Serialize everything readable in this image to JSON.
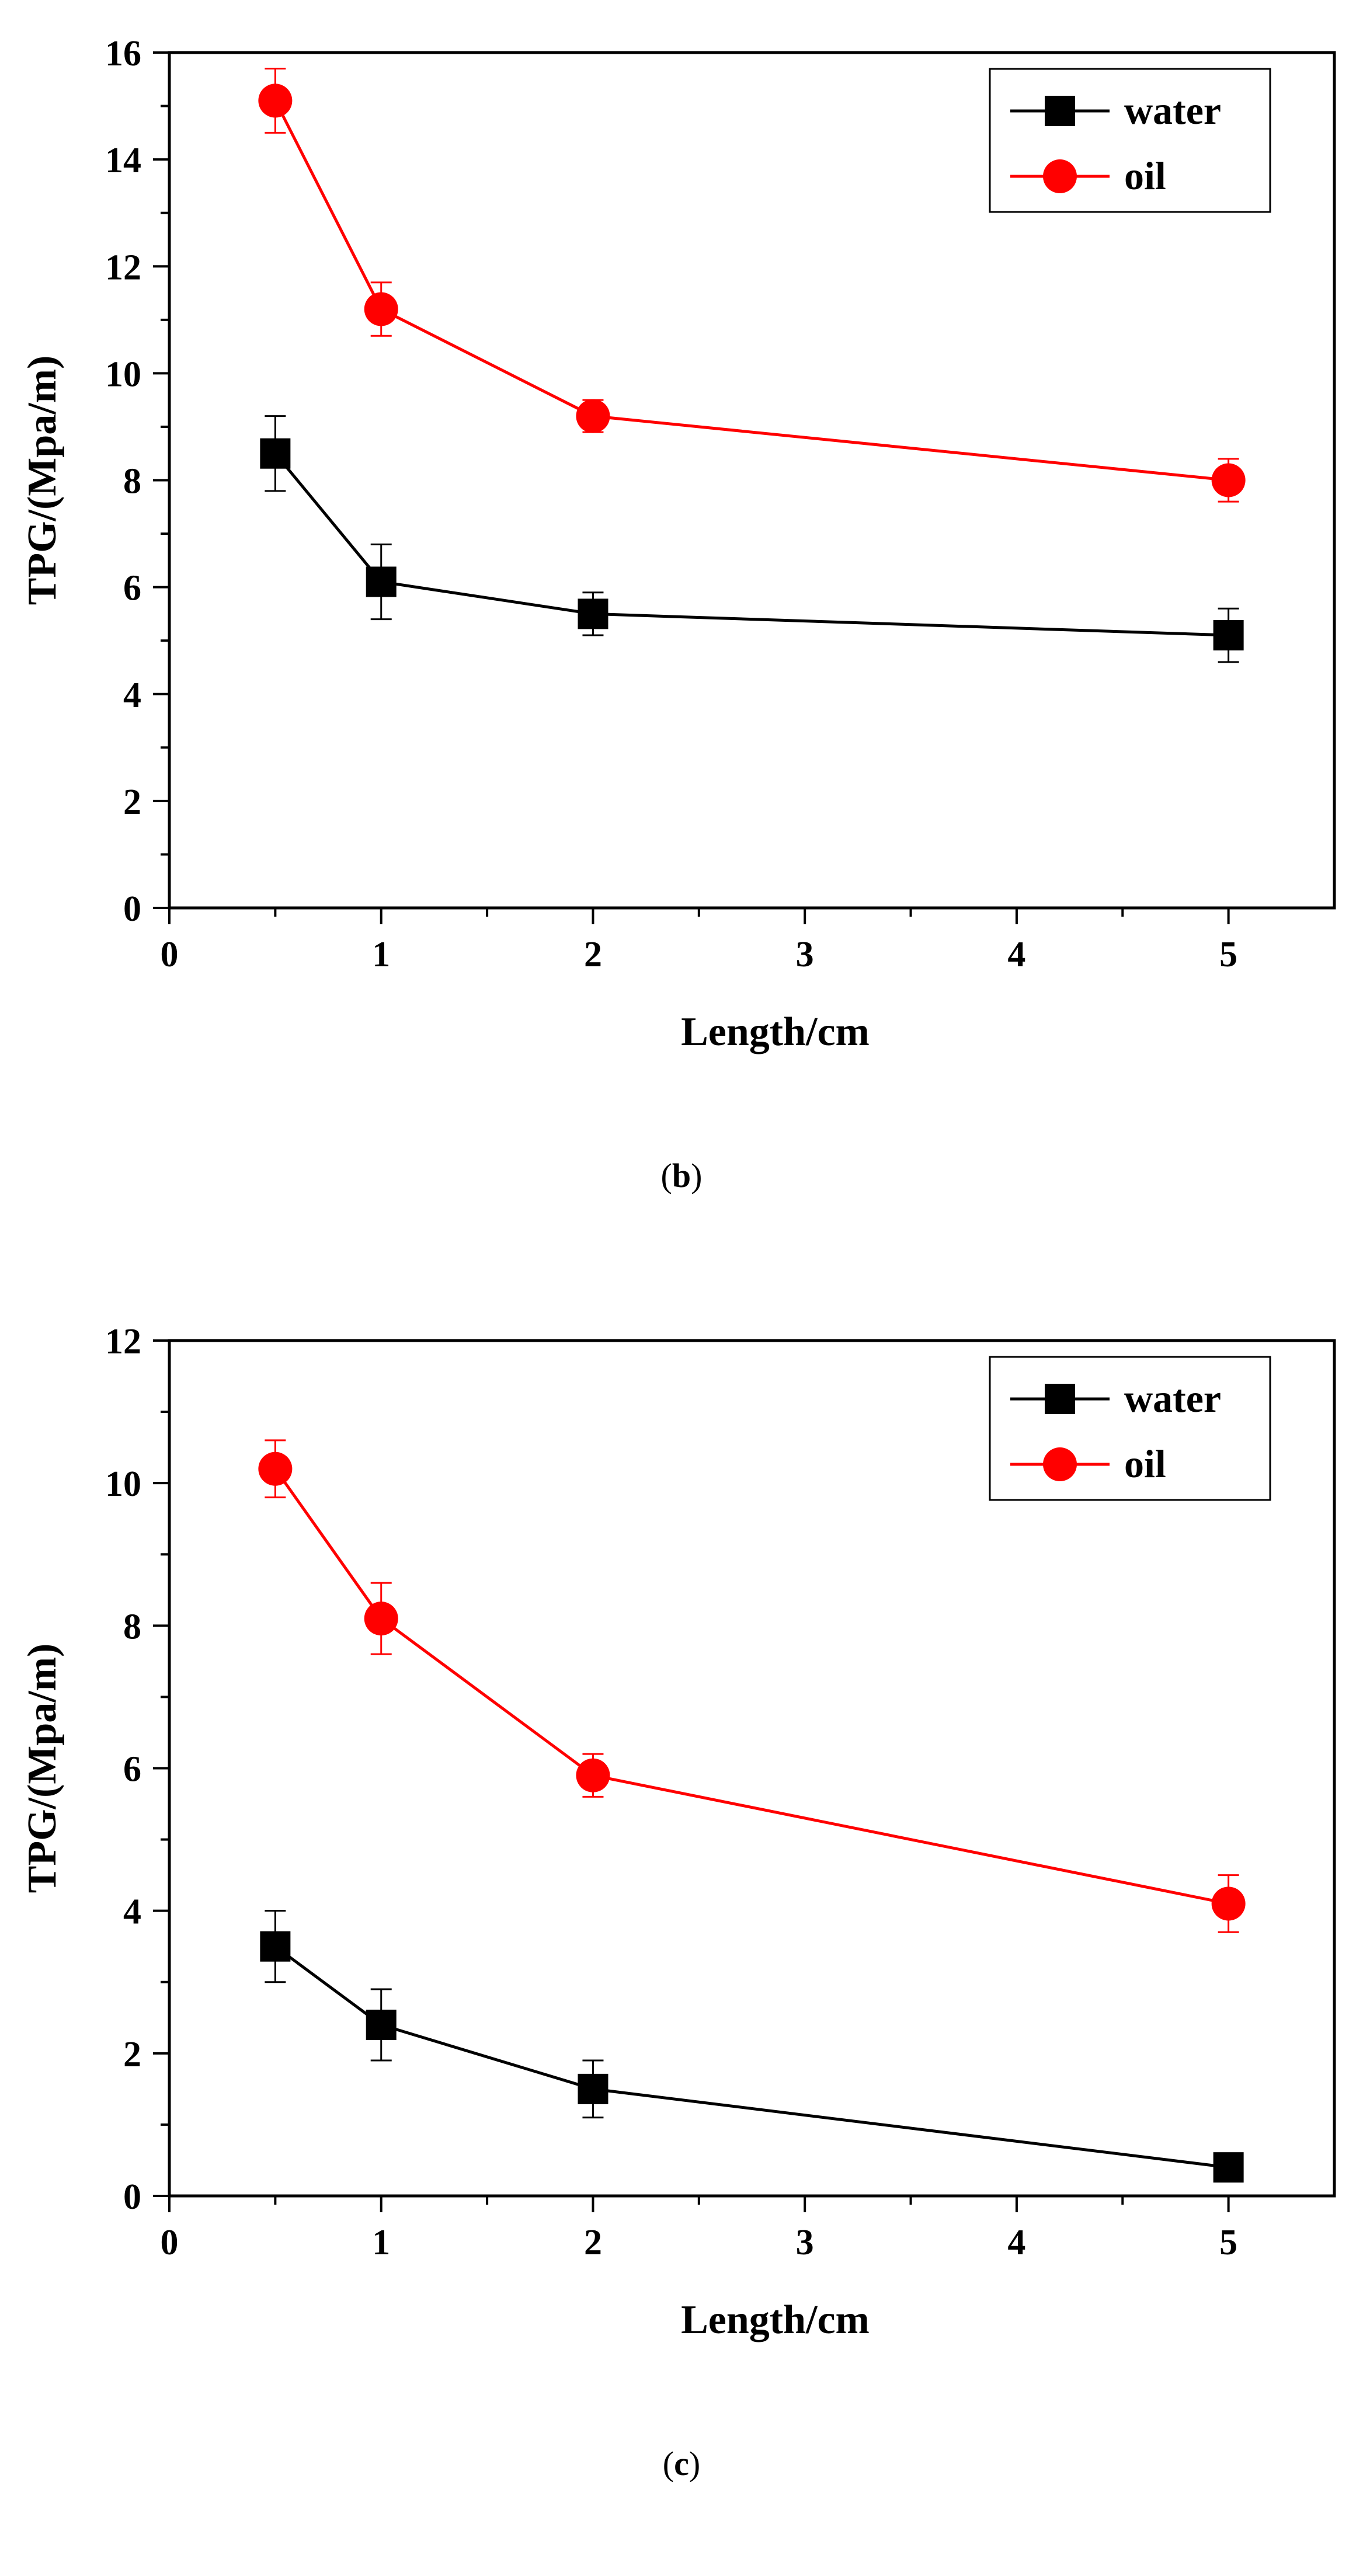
{
  "chart_data": [
    {
      "type": "line",
      "panel_label": "b",
      "caption_open": "(",
      "caption_close": ")",
      "xlabel": "Length/cm",
      "ylabel": "TPG/(Mpa/m)",
      "xlim": [
        0,
        5.5
      ],
      "ylim": [
        0,
        16
      ],
      "x_major_ticks": [
        0,
        1,
        2,
        3,
        4,
        5
      ],
      "x_tick_labels": [
        "0",
        "1",
        "2",
        "3",
        "4",
        "5"
      ],
      "y_major_ticks": [
        0,
        2,
        4,
        6,
        8,
        10,
        12,
        14,
        16
      ],
      "y_tick_labels": [
        "0",
        "2",
        "4",
        "6",
        "8",
        "10",
        "12",
        "14",
        "16"
      ],
      "legend_position": "top-right",
      "series": [
        {
          "name": "water",
          "color": "#000000",
          "marker": "square",
          "x": [
            0.5,
            1,
            2,
            5
          ],
          "y": [
            8.5,
            6.1,
            5.5,
            5.1
          ],
          "err": [
            0.7,
            0.7,
            0.4,
            0.5
          ]
        },
        {
          "name": "oil",
          "color": "#ff0000",
          "marker": "circle",
          "x": [
            0.5,
            1,
            2,
            5
          ],
          "y": [
            15.1,
            11.2,
            9.2,
            8.0
          ],
          "err": [
            0.6,
            0.5,
            0.3,
            0.4
          ]
        }
      ]
    },
    {
      "type": "line",
      "panel_label": "c",
      "caption_open": "(",
      "caption_close": ")",
      "xlabel": "Length/cm",
      "ylabel": "TPG/(Mpa/m)",
      "xlim": [
        0,
        5.5
      ],
      "ylim": [
        0,
        12
      ],
      "x_major_ticks": [
        0,
        1,
        2,
        3,
        4,
        5
      ],
      "x_tick_labels": [
        "0",
        "1",
        "2",
        "3",
        "4",
        "5"
      ],
      "y_major_ticks": [
        0,
        2,
        4,
        6,
        8,
        10,
        12
      ],
      "y_tick_labels": [
        "0",
        "2",
        "4",
        "6",
        "8",
        "10",
        "12"
      ],
      "legend_position": "top-right",
      "series": [
        {
          "name": "water",
          "color": "#000000",
          "marker": "square",
          "x": [
            0.5,
            1,
            2,
            5
          ],
          "y": [
            3.5,
            2.4,
            1.5,
            0.4
          ],
          "err": [
            0.5,
            0.5,
            0.4,
            0.1
          ]
        },
        {
          "name": "oil",
          "color": "#ff0000",
          "marker": "circle",
          "x": [
            0.5,
            1,
            2,
            5
          ],
          "y": [
            10.2,
            8.1,
            5.9,
            4.1
          ],
          "err": [
            0.4,
            0.5,
            0.3,
            0.4
          ]
        }
      ]
    }
  ]
}
